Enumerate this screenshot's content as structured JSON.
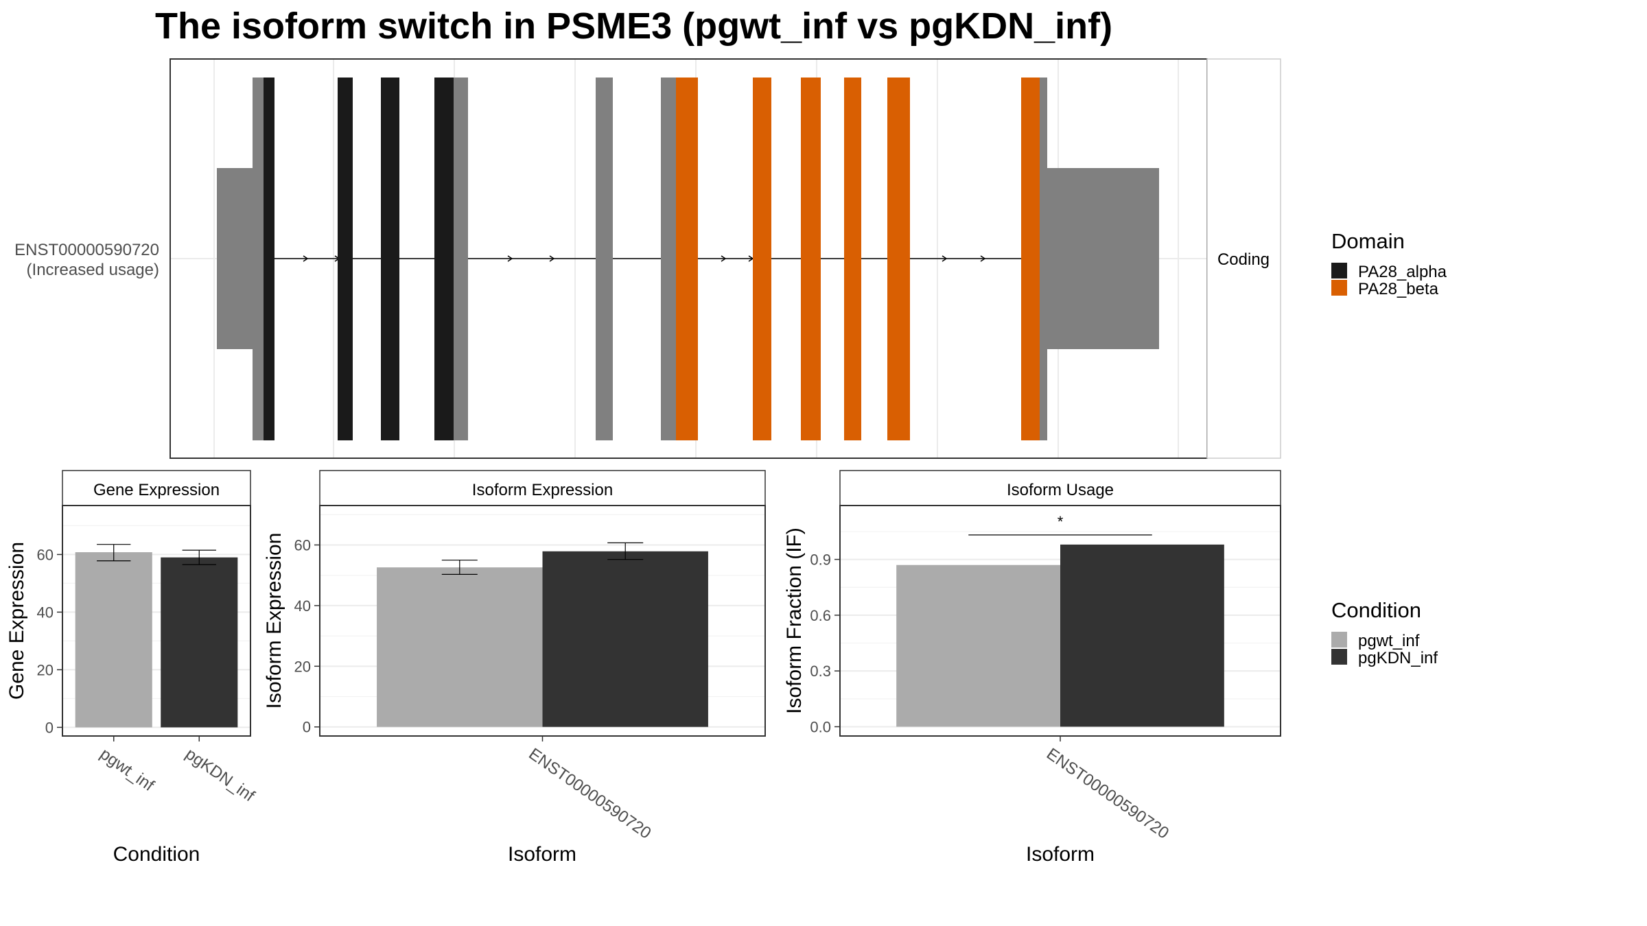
{
  "figure": {
    "title": "The isoform switch in PSME3 (pgwt_inf vs pgKDN_inf)"
  },
  "structure": {
    "isoform_id": "ENST00000590720",
    "isoform_note": "(Increased usage)",
    "strip_label": "Coding",
    "colors": {
      "utr": "#808080",
      "PA28_alpha": "#1a1a1a",
      "PA28_beta": "#d95f02",
      "intron": "#000000"
    },
    "legend": {
      "title": "Domain",
      "items": [
        {
          "label": "PA28_alpha",
          "color": "#1a1a1a"
        },
        {
          "label": "PA28_beta",
          "color": "#d95f02"
        }
      ]
    }
  },
  "condition_legend": {
    "title": "Condition",
    "items": [
      {
        "label": "pgwt_inf",
        "color": "#ababab"
      },
      {
        "label": "pgKDN_inf",
        "color": "#333333"
      }
    ]
  },
  "chart_data": [
    {
      "type": "bar",
      "title": "Gene Expression",
      "xlabel": "Condition",
      "ylabel": "Gene Expression",
      "categories": [
        "pgwt_inf",
        "pgKDN_inf"
      ],
      "values": [
        60.8,
        59.0
      ],
      "errors": [
        [
          57.8,
          63.5
        ],
        [
          56.5,
          61.5
        ]
      ],
      "yticks": [
        0,
        20,
        40,
        60
      ],
      "ylim": [
        -3,
        77
      ]
    },
    {
      "type": "bar",
      "title": "Isoform Expression",
      "xlabel": "Isoform",
      "ylabel": "Isoform Expression",
      "categories": [
        "ENST00000590720"
      ],
      "series": [
        {
          "name": "pgwt_inf",
          "values": [
            52.6
          ],
          "errors": [
            [
              50.3,
              55.0
            ]
          ]
        },
        {
          "name": "pgKDN_inf",
          "values": [
            57.9
          ],
          "errors": [
            [
              55.2,
              60.7
            ]
          ]
        }
      ],
      "yticks": [
        0,
        20,
        40,
        60
      ],
      "ylim": [
        -3,
        73
      ]
    },
    {
      "type": "bar",
      "title": "Isoform Usage",
      "xlabel": "Isoform",
      "ylabel": "Isoform Fraction (IF)",
      "categories": [
        "ENST00000590720"
      ],
      "series": [
        {
          "name": "pgwt_inf",
          "values": [
            0.87
          ]
        },
        {
          "name": "pgKDN_inf",
          "values": [
            0.98
          ]
        }
      ],
      "significance": "*",
      "yticks": [
        "0.0",
        "0.3",
        "0.6",
        "0.9"
      ],
      "ylim": [
        -0.05,
        1.19
      ]
    }
  ]
}
